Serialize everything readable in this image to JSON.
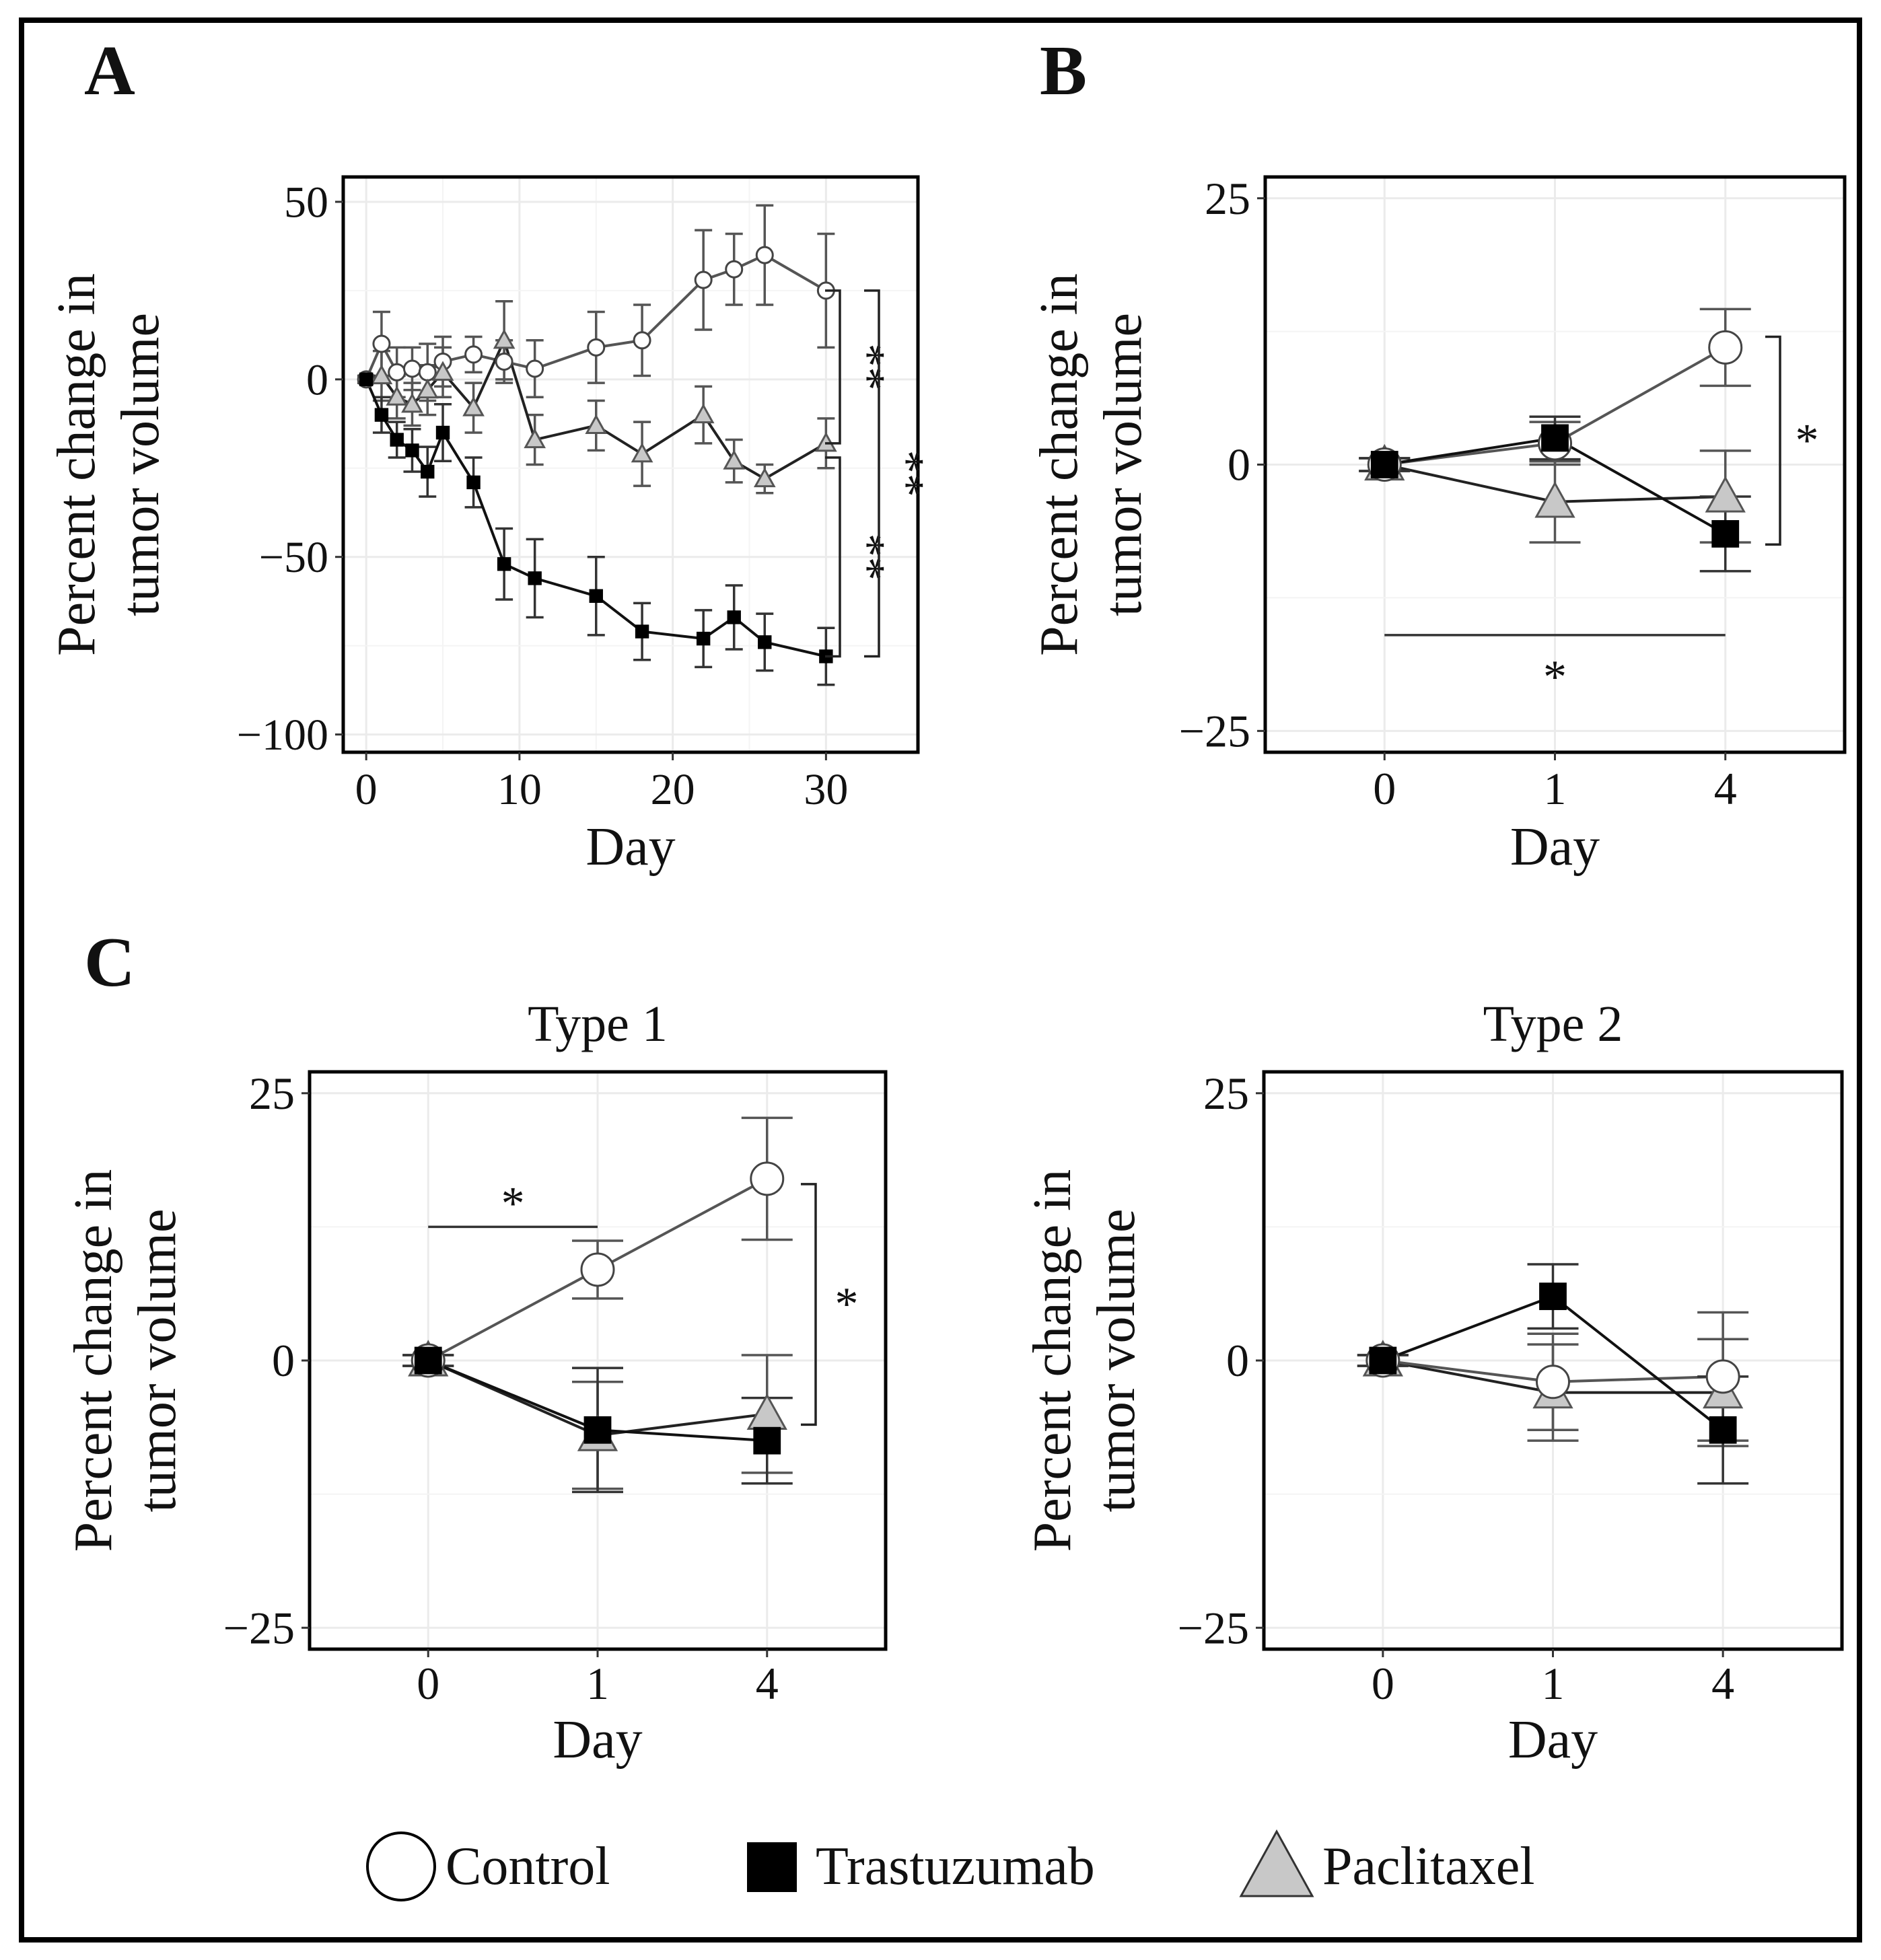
{
  "figure": {
    "panel_labels": [
      "A",
      "B",
      "C"
    ],
    "legend": {
      "items": [
        {
          "label": "Control",
          "marker": "circle",
          "color": "#ffffff"
        },
        {
          "label": "Trastuzumab",
          "marker": "square",
          "color": "#000000"
        },
        {
          "label": "Paclitaxel",
          "marker": "triangle",
          "color": "#c8c8c8"
        }
      ]
    }
  },
  "chart_data": [
    {
      "id": "A",
      "type": "line",
      "title": "",
      "xlabel": "Day",
      "ylabel_lines": [
        "Percent change in",
        "tumor volume"
      ],
      "x_numeric": true,
      "xlim": [
        -1.5,
        36
      ],
      "ylim": [
        -105,
        57
      ],
      "xticks": [
        0,
        10,
        20,
        30
      ],
      "xtick_labels": [
        "0",
        "10",
        "20",
        "30"
      ],
      "yticks": [
        50,
        0,
        -50,
        -100
      ],
      "ytick_labels": [
        "50",
        "0",
        "−50",
        "−100"
      ],
      "series": [
        {
          "name": "Control",
          "marker": "circle",
          "x": [
            0,
            1,
            2,
            3,
            4,
            5,
            7,
            9,
            11,
            15,
            18,
            22,
            24,
            26,
            30
          ],
          "y": [
            0,
            10,
            2,
            3,
            2,
            5,
            7,
            5,
            3,
            9,
            11,
            28,
            31,
            35,
            25
          ],
          "err": [
            1,
            9,
            7,
            6,
            8,
            7,
            5,
            6,
            8,
            10,
            10,
            14,
            10,
            14,
            16
          ]
        },
        {
          "name": "Trastuzumab",
          "marker": "square",
          "x": [
            0,
            1,
            2,
            3,
            4,
            5,
            7,
            9,
            11,
            15,
            18,
            22,
            24,
            26,
            30
          ],
          "y": [
            0,
            -10,
            -17,
            -20,
            -26,
            -15,
            -29,
            -52,
            -56,
            -61,
            -71,
            -73,
            -67,
            -74,
            -78
          ],
          "err": [
            1,
            5,
            5,
            6,
            7,
            8,
            7,
            10,
            11,
            11,
            8,
            8,
            9,
            8,
            8
          ]
        },
        {
          "name": "Paclitaxel",
          "marker": "triangle",
          "x": [
            1,
            2,
            3,
            4,
            5,
            7,
            9,
            11,
            15,
            18,
            22,
            24,
            26,
            30
          ],
          "y": [
            1,
            -5,
            -7,
            -3,
            2,
            -8,
            11,
            -17,
            -13,
            -21,
            -10,
            -23,
            -28,
            -18
          ],
          "err": [
            7,
            6,
            6,
            7,
            7,
            7,
            11,
            7,
            7,
            9,
            8,
            6,
            4,
            7
          ]
        }
      ],
      "annotations": [
        {
          "type": "bracket",
          "y1": 25,
          "y2": -18,
          "label": "**"
        },
        {
          "type": "bracket",
          "y1": -22,
          "y2": -78,
          "label": "**"
        },
        {
          "type": "bracket",
          "y1": 25,
          "y2": -78,
          "label": "**",
          "outer": true
        }
      ]
    },
    {
      "id": "B",
      "type": "line",
      "title": "",
      "xlabel": "Day",
      "ylabel_lines": [
        "Percent change in",
        "tumor volume"
      ],
      "categories": [
        "0",
        "1",
        "4"
      ],
      "ylim": [
        -27,
        27
      ],
      "yticks": [
        25,
        0,
        -25
      ],
      "ytick_labels": [
        "25",
        "0",
        "−25"
      ],
      "series": [
        {
          "name": "Control",
          "marker": "circle",
          "values": [
            0,
            2,
            11
          ],
          "err": [
            0.6,
            2,
            3.6
          ]
        },
        {
          "name": "Trastuzumab",
          "marker": "square",
          "values": [
            0,
            2.5,
            -6.5
          ],
          "err": [
            0.6,
            2,
            3.5
          ]
        },
        {
          "name": "Paclitaxel",
          "marker": "triangle",
          "values": [
            0,
            -3.5,
            -3
          ],
          "err": [
            0.6,
            3.8,
            4.3
          ]
        }
      ],
      "annotations": [
        {
          "type": "bracket",
          "y1": 12,
          "y2": -7.5,
          "label": "*"
        },
        {
          "type": "hline",
          "x1": 0,
          "x2": 2,
          "y": -16,
          "label": "*",
          "label_pos": "below"
        }
      ]
    },
    {
      "id": "C1",
      "type": "line",
      "title": "Type 1",
      "xlabel": "Day",
      "ylabel_lines": [
        "Percent change in",
        "tumor volume"
      ],
      "categories": [
        "0",
        "1",
        "4"
      ],
      "ylim": [
        -27,
        27
      ],
      "yticks": [
        25,
        0,
        -25
      ],
      "ytick_labels": [
        "25",
        "0",
        "−25"
      ],
      "series": [
        {
          "name": "Control",
          "marker": "circle",
          "values": [
            0,
            8.5,
            17
          ],
          "err": [
            0.5,
            2.7,
            5.7
          ]
        },
        {
          "name": "Trastuzumab",
          "marker": "square",
          "values": [
            0,
            -6.5,
            -7.5
          ],
          "err": [
            0.5,
            5.8,
            4
          ]
        },
        {
          "name": "Paclitaxel",
          "marker": "triangle",
          "values": [
            0,
            -7,
            -5
          ],
          "err": [
            0.5,
            5,
            5.5
          ]
        }
      ],
      "annotations": [
        {
          "type": "hline",
          "x1": 0,
          "x2": 1,
          "y": 12.5,
          "label": "*",
          "label_pos": "above"
        },
        {
          "type": "bracket",
          "y1": 16.5,
          "y2": -6,
          "label": "*"
        }
      ]
    },
    {
      "id": "C2",
      "type": "line",
      "title": "Type 2",
      "xlabel": "Day",
      "ylabel_lines": [
        "Percent change in",
        "tumor volume"
      ],
      "categories": [
        "0",
        "1",
        "4"
      ],
      "ylim": [
        -27,
        27
      ],
      "yticks": [
        25,
        0,
        -25
      ],
      "ytick_labels": [
        "25",
        "0",
        "−25"
      ],
      "series": [
        {
          "name": "Control",
          "marker": "circle",
          "values": [
            0,
            -2,
            -1.5
          ],
          "err": [
            0.5,
            4.5,
            6
          ]
        },
        {
          "name": "Trastuzumab",
          "marker": "square",
          "values": [
            0,
            6,
            -6.5
          ],
          "err": [
            0.5,
            3,
            5
          ]
        },
        {
          "name": "Paclitaxel",
          "marker": "triangle",
          "values": [
            0,
            -3,
            -3
          ],
          "err": [
            0.5,
            4.5,
            5
          ]
        }
      ],
      "annotations": []
    }
  ]
}
